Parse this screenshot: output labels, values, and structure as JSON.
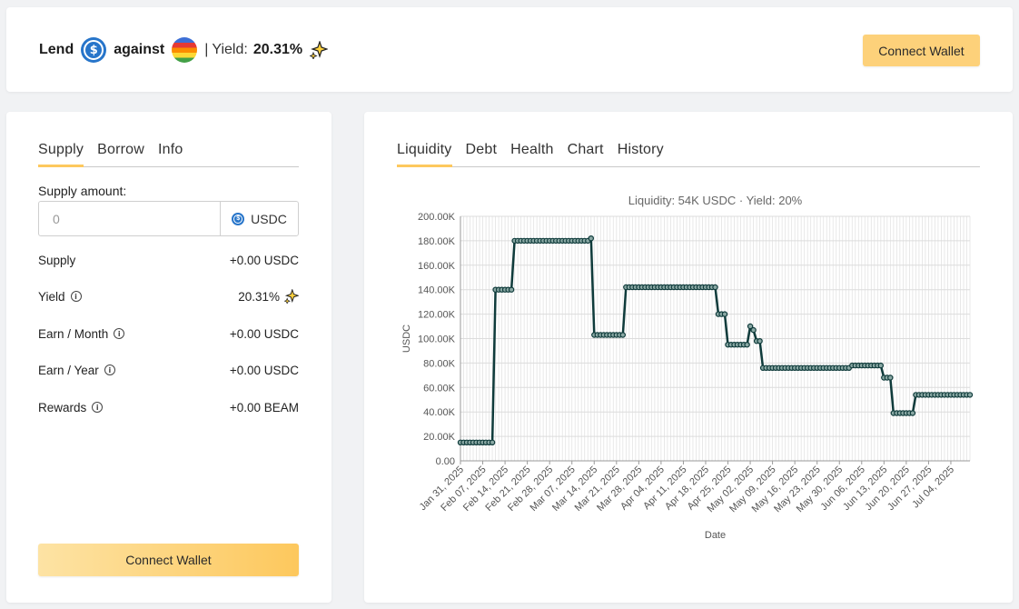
{
  "header": {
    "lend": "Lend",
    "against": "against",
    "separator": "|",
    "yield_label": "Yield:",
    "yield_value": "20.31%",
    "connect_wallet": "Connect Wallet"
  },
  "left": {
    "tabs": [
      "Supply",
      "Borrow",
      "Info"
    ],
    "supply_label": "Supply amount:",
    "input_placeholder": "0",
    "unit": "USDC",
    "rows": [
      {
        "label": "Supply",
        "value": "+0.00 USDC"
      },
      {
        "label": "Yield",
        "value": "20.31%"
      },
      {
        "label": "Earn / Month",
        "value": "+0.00 USDC"
      },
      {
        "label": "Earn / Year",
        "value": "+0.00 USDC"
      },
      {
        "label": "Rewards",
        "value": "+0.00 BEAM"
      }
    ],
    "connect_wallet": "Connect Wallet"
  },
  "right": {
    "tabs": [
      "Liquidity",
      "Debt",
      "Health",
      "Chart",
      "History"
    ]
  },
  "colors": {
    "accent": "#fdc85d",
    "line": "#0f3b3b",
    "usdc": "#2775ca"
  },
  "chart_data": {
    "type": "line",
    "title": "Liquidity: 54K USDC · Yield: 20%",
    "xlabel": "Date",
    "ylabel": "USDC",
    "ylim": [
      0,
      200000
    ],
    "yticks": [
      "0.00",
      "20.00K",
      "40.00K",
      "60.00K",
      "80.00K",
      "100.00K",
      "120.00K",
      "140.00K",
      "160.00K",
      "180.00K",
      "200.00K"
    ],
    "xticks": [
      "Jan 31, 2025",
      "Feb 07, 2025",
      "Feb 14, 2025",
      "Feb 21, 2025",
      "Feb 28, 2025",
      "Mar 07, 2025",
      "Mar 14, 2025",
      "Mar 21, 2025",
      "Mar 28, 2025",
      "Apr 04, 2025",
      "Apr 11, 2025",
      "Apr 18, 2025",
      "Apr 25, 2025",
      "May 02, 2025",
      "May 09, 2025",
      "May 16, 2025",
      "May 23, 2025",
      "May 30, 2025",
      "Jun 06, 2025",
      "Jun 13, 2025",
      "Jun 20, 2025",
      "Jun 27, 2025",
      "Jul 04, 2025"
    ],
    "grid": true,
    "series": [
      {
        "values": [
          [
            "2025-01-31",
            15000
          ],
          [
            "2025-02-10",
            15000
          ],
          [
            "2025-02-11",
            140000
          ],
          [
            "2025-02-16",
            140000
          ],
          [
            "2025-02-17",
            180000
          ],
          [
            "2025-03-12",
            180000
          ],
          [
            "2025-03-13",
            182000
          ],
          [
            "2025-03-14",
            103000
          ],
          [
            "2025-03-23",
            103000
          ],
          [
            "2025-03-24",
            142000
          ],
          [
            "2025-04-21",
            142000
          ],
          [
            "2025-04-22",
            120000
          ],
          [
            "2025-04-24",
            120000
          ],
          [
            "2025-04-25",
            95000
          ],
          [
            "2025-05-01",
            95000
          ],
          [
            "2025-05-02",
            110000
          ],
          [
            "2025-05-03",
            107000
          ],
          [
            "2025-05-04",
            98000
          ],
          [
            "2025-05-05",
            98000
          ],
          [
            "2025-05-06",
            76000
          ],
          [
            "2025-06-02",
            76000
          ],
          [
            "2025-06-03",
            78000
          ],
          [
            "2025-06-09",
            78000
          ],
          [
            "2025-06-10",
            78000
          ],
          [
            "2025-06-12",
            78000
          ],
          [
            "2025-06-13",
            68000
          ],
          [
            "2025-06-15",
            68000
          ],
          [
            "2025-06-16",
            39000
          ],
          [
            "2025-06-22",
            39000
          ],
          [
            "2025-06-23",
            54000
          ],
          [
            "2025-07-10",
            54000
          ]
        ]
      }
    ]
  }
}
